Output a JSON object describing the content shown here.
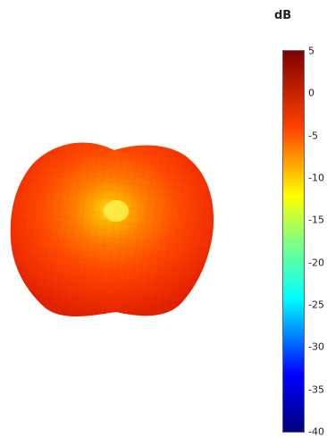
{
  "chart_data": {
    "type": "heatmap",
    "title": "",
    "colorbar": {
      "title": "dB",
      "min": -40,
      "max": 5,
      "ticks": [
        5,
        0,
        -5,
        -10,
        -15,
        -20,
        -25,
        -30,
        -35,
        -40
      ],
      "tick_labels": [
        "5",
        "0",
        "-5",
        "-10",
        "-15",
        "-20",
        "-25",
        "-30",
        "-35",
        "-40"
      ],
      "colorscale": [
        [
          0.0,
          "#00007f"
        ],
        [
          0.15,
          "#0000ff"
        ],
        [
          0.35,
          "#00ffff"
        ],
        [
          0.5,
          "#80ff80"
        ],
        [
          0.62,
          "#ffff00"
        ],
        [
          0.8,
          "#ff4000"
        ],
        [
          1.0,
          "#7f0000"
        ]
      ]
    },
    "surface": {
      "description_level_db": {
        "center_peak": -12,
        "body": -3,
        "edges": -1
      }
    }
  }
}
